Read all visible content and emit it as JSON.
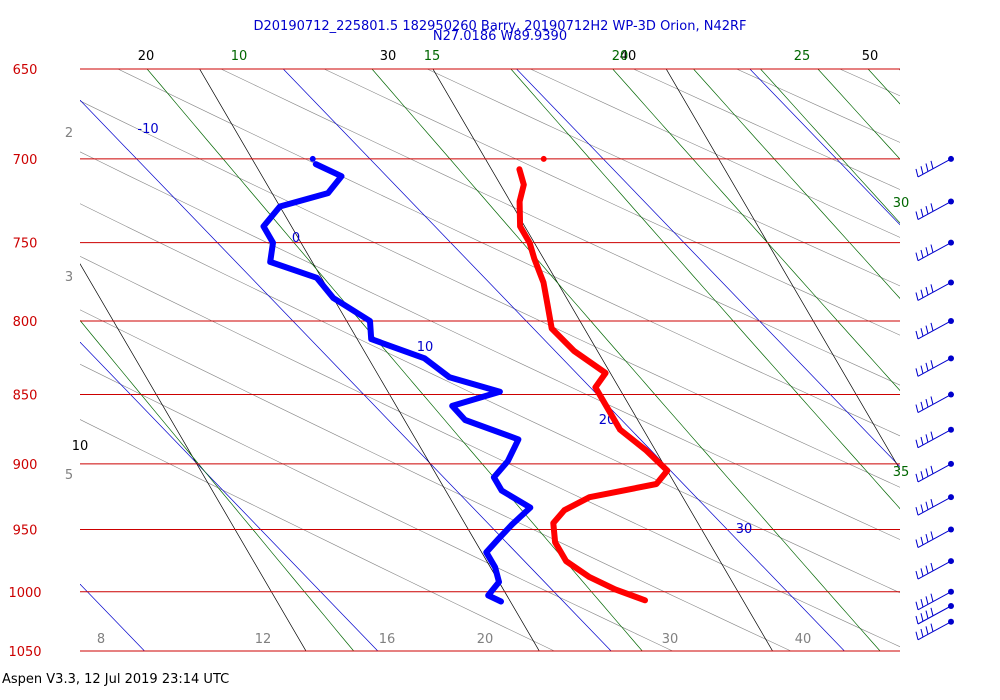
{
  "header": {
    "title_line1": "D20190712_225801.5 182950260 Barry, 20190712H2 WP-3D Orion, N42RF",
    "title_line2": "N27.0186 W89.9390"
  },
  "footer": {
    "text": "Aspen V3.3, 12 Jul 2019  23:14 UTC"
  },
  "chart_data": {
    "type": "skew-t log-p",
    "pressure_levels": [
      650,
      700,
      750,
      800,
      850,
      900,
      950,
      1000,
      1050
    ],
    "top_temperature_labels": [
      "20",
      "30",
      "40",
      "50"
    ],
    "top_mixing_ratio_labels": [
      "10",
      "15",
      "20",
      "25"
    ],
    "right_mixing_ratio_labels": [
      "30",
      "35"
    ],
    "theta_e_labels": [
      "-10",
      "0",
      "10",
      "20",
      "30"
    ],
    "bottom_labels": [
      "8",
      "12",
      "16",
      "20",
      "30",
      "40"
    ],
    "left_gray_labels": [
      "2",
      "3",
      "5"
    ],
    "left_black_labels": [
      "10"
    ],
    "colors": {
      "isobar": "#cc0000",
      "temperature": "#ff0000",
      "dewpoint": "#0000ff",
      "mixing_ratio": "#006600",
      "isotherm": "#000000",
      "theta_e": "#0000cc",
      "dry_adiabat": "#888888"
    },
    "temperature_profile": [
      [
        706,
        11.2
      ],
      [
        715,
        11.0
      ],
      [
        725,
        10.4
      ],
      [
        740,
        9.8
      ],
      [
        750,
        9.8
      ],
      [
        760,
        9.6
      ],
      [
        775,
        9.4
      ],
      [
        790,
        9.0
      ],
      [
        805,
        8.6
      ],
      [
        820,
        9.0
      ],
      [
        835,
        9.8
      ],
      [
        845,
        9.0
      ],
      [
        860,
        9.0
      ],
      [
        875,
        9.0
      ],
      [
        890,
        9.6
      ],
      [
        905,
        10.0
      ],
      [
        915,
        9.2
      ],
      [
        925,
        6.0
      ],
      [
        935,
        4.6
      ],
      [
        945,
        3.8
      ],
      [
        960,
        3.4
      ],
      [
        975,
        3.4
      ],
      [
        988,
        4.0
      ],
      [
        998,
        4.8
      ],
      [
        1007,
        5.8
      ]
    ],
    "dewpoint_profile": [
      [
        703,
        2.6
      ],
      [
        710,
        3.4
      ],
      [
        720,
        2.4
      ],
      [
        728,
        0.0
      ],
      [
        740,
        -1.2
      ],
      [
        750,
        -1.2
      ],
      [
        762,
        -1.8
      ],
      [
        772,
        -0.2
      ],
      [
        785,
        0.0
      ],
      [
        800,
        1.0
      ],
      [
        812,
        0.6
      ],
      [
        825,
        2.4
      ],
      [
        838,
        3.0
      ],
      [
        848,
        4.8
      ],
      [
        858,
        2.4
      ],
      [
        868,
        2.6
      ],
      [
        882,
        4.4
      ],
      [
        898,
        3.4
      ],
      [
        910,
        2.4
      ],
      [
        920,
        2.4
      ],
      [
        933,
        3.2
      ],
      [
        946,
        2.0
      ],
      [
        958,
        1.0
      ],
      [
        968,
        0.2
      ],
      [
        980,
        0.2
      ],
      [
        992,
        0.0
      ],
      [
        1003,
        -0.8
      ],
      [
        1008,
        -0.4
      ]
    ],
    "surface_markers": {
      "temperature": [
        700,
        12.5
      ],
      "dewpoint": [
        700,
        2.6
      ]
    },
    "wind_barb_levels": [
      700,
      725,
      750,
      775,
      800,
      825,
      850,
      875,
      900,
      925,
      950,
      975,
      1000,
      1025,
      1050
    ]
  }
}
